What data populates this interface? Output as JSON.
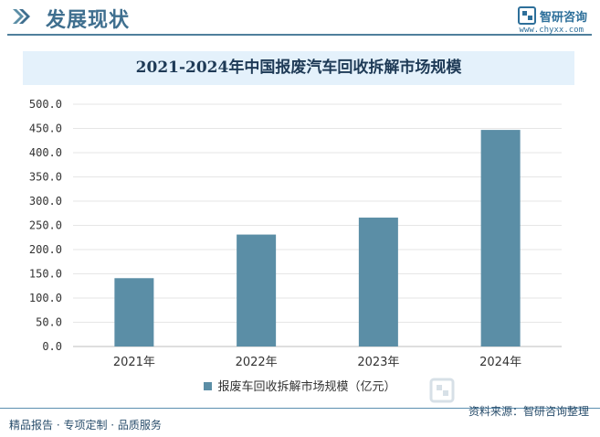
{
  "header": {
    "title": "发展现状",
    "brand_name": "智研咨询",
    "brand_url": "www.chyxx.com"
  },
  "chart_data": {
    "type": "bar",
    "title": "2021-2024年中国报废汽车回收拆解市场规模",
    "categories": [
      "2021年",
      "2022年",
      "2023年",
      "2024年"
    ],
    "series": [
      {
        "name": "报废车回收拆解市场规模（亿元）",
        "values": [
          141,
          231,
          266,
          447
        ]
      }
    ],
    "ylim": [
      0,
      500
    ],
    "yticks": [
      "0.0",
      "50.0",
      "100.0",
      "150.0",
      "200.0",
      "250.0",
      "300.0",
      "350.0",
      "400.0",
      "450.0",
      "500.0"
    ],
    "xlabel": "",
    "ylabel": "",
    "grid": "horizontal",
    "legend": "bottom",
    "bar_color": "#5b8ea6"
  },
  "footer": {
    "left": "精品报告 · 专项定制 · 品质服务",
    "source": "资料来源：智研咨询整理"
  },
  "colors": {
    "accent": "#3f6f8f",
    "bar": "#5b8ea6",
    "title_bg": "#e4f1fb"
  }
}
